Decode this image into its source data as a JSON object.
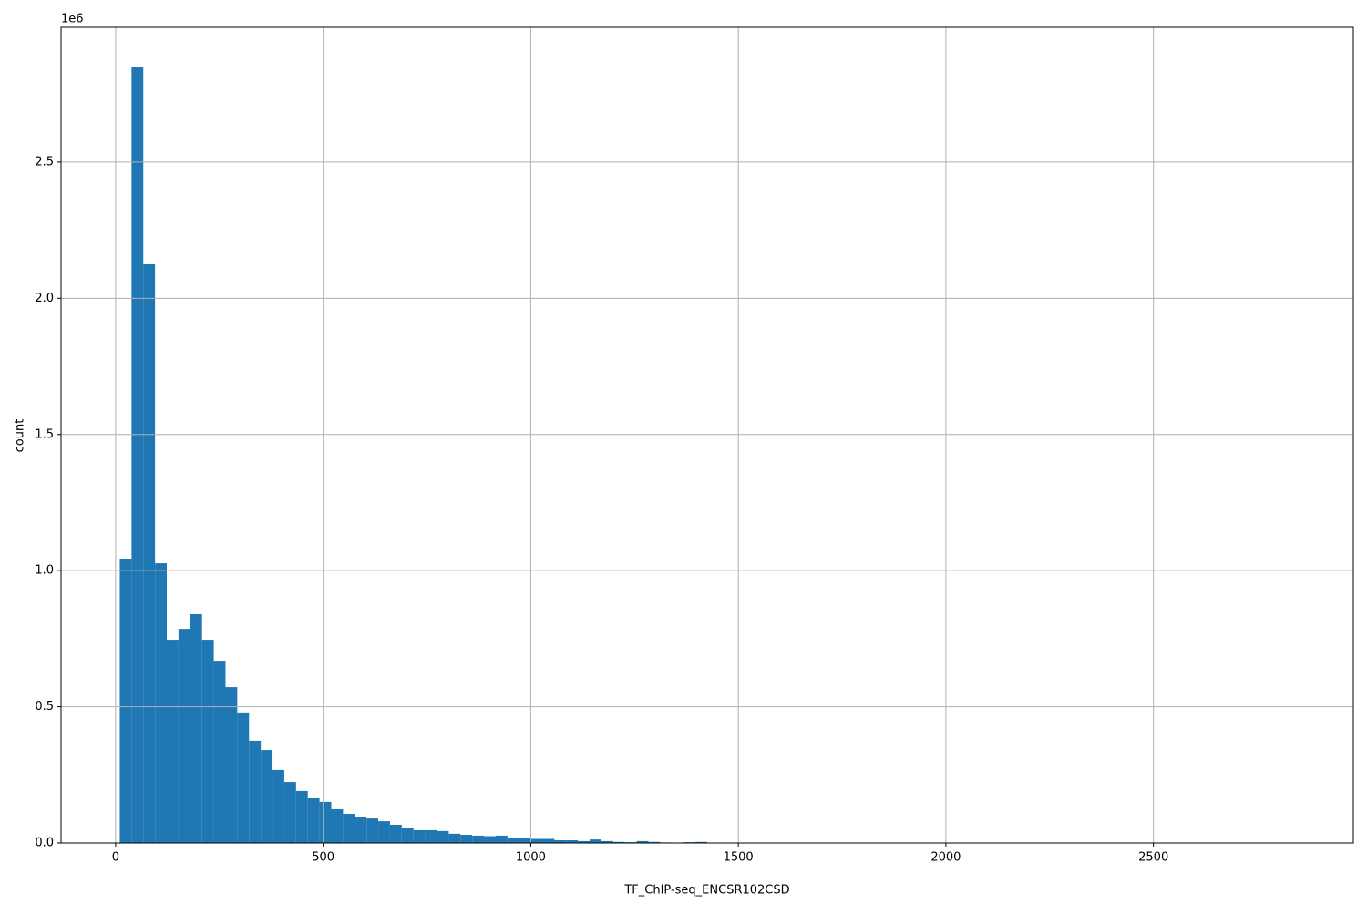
{
  "chart_data": {
    "type": "histogram",
    "x_label": "TF_ChIP-seq_ENCSR102CSD",
    "y_label": "count",
    "y_offset_text": "1e6",
    "color": "#1f77b4",
    "grid": true,
    "bins": [
      10,
      38.3,
      66.6,
      94.9,
      123.2,
      151.5,
      179.8,
      208.1,
      236.4,
      264.7,
      293,
      321.3,
      349.6,
      377.9,
      406.2,
      434.5,
      462.8,
      491.1,
      519.4,
      547.7,
      576,
      604.3,
      632.6,
      660.9,
      689.2,
      717.5,
      745.8,
      774.1,
      802.4,
      830.7,
      859,
      887.3,
      915.6,
      943.9,
      972.2,
      1000.5,
      1028.8,
      1057.1,
      1085.4,
      1113.7,
      1142,
      1170.3,
      1198.6,
      1226.9,
      1255.2,
      1283.5,
      1311.8,
      1340.1,
      1368.4,
      1396.7,
      1425,
      1453.3,
      1481.6,
      1509.9,
      1538.2,
      1566.5,
      1594.8,
      1623.1,
      1651.4,
      1679.7,
      1708,
      1736.3,
      1764.6,
      1792.9,
      1821.2,
      1849.5,
      1877.8,
      1906.1,
      1934.4,
      1962.7,
      1991,
      2019.3,
      2047.6,
      2075.9,
      2104.2,
      2132.5,
      2160.8,
      2189.1,
      2217.4,
      2245.7,
      2274,
      2302.3,
      2330.6,
      2358.9,
      2387.2,
      2415.5,
      2443.8,
      2472.1,
      2500.4,
      2528.7,
      2557,
      2585.3,
      2613.6,
      2641.9,
      2670.2,
      2698.5,
      2726.8,
      2755.1,
      2783.4,
      2811.7,
      2840
    ],
    "values": [
      1044000,
      2851000,
      2125000,
      1027000,
      746000,
      786000,
      840000,
      746000,
      669000,
      572000,
      479000,
      375000,
      341000,
      268000,
      224000,
      191000,
      164000,
      151000,
      124000,
      107000,
      94000,
      90000,
      80000,
      67000,
      57000,
      47000,
      47000,
      44000,
      34000,
      30000,
      27000,
      25000,
      27000,
      20000,
      17000,
      15000,
      15000,
      10000,
      10000,
      7000,
      13000,
      7000,
      4000,
      3000,
      7000,
      4000,
      2000,
      1000,
      3000,
      4000,
      1000,
      500,
      300,
      200,
      100,
      100,
      100,
      0,
      0,
      0,
      0,
      0,
      0,
      0,
      0,
      0,
      0,
      0,
      0,
      0,
      0,
      0,
      0,
      0,
      0,
      0,
      0,
      0,
      0,
      0,
      0,
      0,
      0,
      0,
      0,
      0,
      0,
      0,
      0,
      0,
      0,
      0,
      0,
      0,
      0,
      0,
      0,
      0,
      0,
      100
    ],
    "xlim": [
      -131.5,
      2981.5
    ],
    "ylim": [
      0,
      2995000
    ],
    "xticks": [
      0,
      500,
      1000,
      1500,
      2000,
      2500
    ],
    "yticks": [
      {
        "value": 0,
        "label": "0.0"
      },
      {
        "value": 500000,
        "label": "0.5"
      },
      {
        "value": 1000000,
        "label": "1.0"
      },
      {
        "value": 1500000,
        "label": "1.5"
      },
      {
        "value": 2000000,
        "label": "2.0"
      },
      {
        "value": 2500000,
        "label": "2.5"
      }
    ]
  }
}
